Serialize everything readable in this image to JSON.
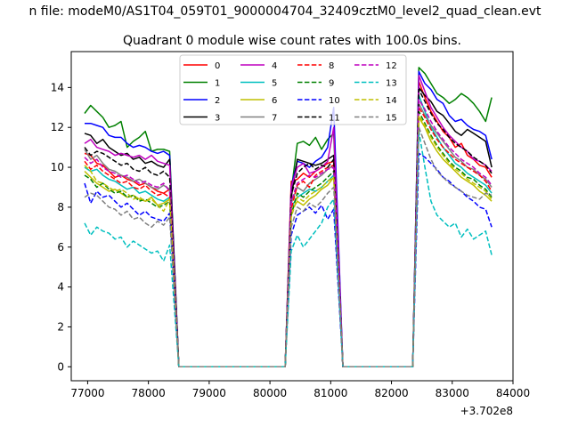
{
  "chart_data": {
    "type": "line",
    "suptitle": "n file: modeM0/AS1T04_059T01_9000004704_32409cztM0_level2_quad_clean.evt",
    "title": "Quadrant 0 module wise count rates with 100.0s bins.",
    "xlabel": "",
    "ylabel": "",
    "x_offset_label": "+3.702e8",
    "xlim": [
      76730,
      84000
    ],
    "ylim": [
      -0.7,
      15.8
    ],
    "xticks": [
      77000,
      78000,
      79000,
      80000,
      81000,
      82000,
      83000,
      84000
    ],
    "yticks": [
      0,
      2,
      4,
      6,
      8,
      10,
      12,
      14
    ],
    "legend_position": "upper-center",
    "segments": [
      {
        "start": 76950,
        "n": 15
      },
      {
        "start": 80350,
        "n": 8
      },
      {
        "start": 82450,
        "n": 13
      }
    ],
    "series": [
      {
        "name": "0",
        "color": "#ff0000",
        "style": "solid",
        "values": [
          10.7,
          10.6,
          10.2,
          10.1,
          9.8,
          9.5,
          9.6,
          9.4,
          9.3,
          9.1,
          9.2,
          9.0,
          8.8,
          8.7,
          8.9,
          9.3,
          9.4,
          9.7,
          9.5,
          9.8,
          10.0,
          10.2,
          10.3,
          14.3,
          13.5,
          12.8,
          12.3,
          11.8,
          11.5,
          11.0,
          11.2,
          10.6,
          10.4,
          10.1,
          10.0,
          9.5
        ]
      },
      {
        "name": "1",
        "color": "#008000",
        "style": "solid",
        "values": [
          12.7,
          13.1,
          12.8,
          12.5,
          12.0,
          12.1,
          12.3,
          11.0,
          11.3,
          11.5,
          11.8,
          10.8,
          10.9,
          10.9,
          10.8,
          8.8,
          11.2,
          11.3,
          11.1,
          11.5,
          10.9,
          11.4,
          11.7,
          15.0,
          14.7,
          14.2,
          13.7,
          13.5,
          13.2,
          13.4,
          13.7,
          13.5,
          13.2,
          12.8,
          12.3,
          13.5
        ]
      },
      {
        "name": "2",
        "color": "#0000ff",
        "style": "solid",
        "values": [
          12.2,
          12.2,
          12.1,
          12.0,
          11.6,
          11.5,
          11.5,
          11.2,
          11.0,
          11.1,
          11.0,
          10.8,
          10.7,
          10.8,
          10.6,
          9.0,
          10.3,
          10.2,
          10.0,
          10.3,
          10.5,
          11.0,
          13.0,
          14.8,
          14.2,
          13.9,
          13.4,
          13.2,
          12.6,
          12.3,
          12.4,
          12.1,
          11.9,
          11.8,
          11.6,
          10.4
        ]
      },
      {
        "name": "3",
        "color": "#000000",
        "style": "solid",
        "values": [
          11.7,
          11.6,
          11.2,
          11.4,
          11.0,
          10.8,
          10.6,
          10.7,
          10.4,
          10.5,
          10.2,
          10.3,
          10.1,
          10.0,
          10.4,
          8.5,
          10.4,
          10.3,
          10.2,
          10.1,
          10.2,
          10.4,
          10.6,
          14.0,
          13.6,
          13.3,
          12.8,
          12.6,
          12.2,
          11.8,
          11.6,
          11.9,
          11.7,
          11.5,
          11.3,
          10.0
        ]
      },
      {
        "name": "4",
        "color": "#bf00bf",
        "style": "solid",
        "values": [
          11.2,
          11.4,
          11.0,
          10.9,
          10.8,
          10.6,
          10.7,
          10.6,
          10.5,
          10.6,
          10.4,
          10.6,
          10.3,
          10.2,
          10.1,
          9.0,
          10.0,
          10.2,
          9.7,
          9.8,
          10.0,
          10.3,
          12.0,
          14.6,
          13.8,
          13.0,
          12.5,
          12.0,
          11.6,
          11.3,
          11.0,
          10.8,
          10.4,
          10.3,
          10.1,
          9.8
        ]
      },
      {
        "name": "5",
        "color": "#00bfbf",
        "style": "solid",
        "values": [
          10.0,
          9.8,
          9.9,
          9.6,
          9.4,
          9.3,
          9.1,
          8.9,
          9.0,
          8.7,
          8.8,
          8.6,
          8.4,
          8.3,
          8.5,
          8.0,
          8.5,
          8.7,
          8.9,
          8.8,
          9.0,
          9.3,
          9.6,
          13.6,
          12.8,
          12.0,
          11.5,
          11.0,
          10.6,
          10.2,
          10.0,
          9.7,
          9.5,
          9.3,
          9.1,
          8.7
        ]
      },
      {
        "name": "6",
        "color": "#bfbf00",
        "style": "solid",
        "values": [
          9.8,
          9.5,
          9.2,
          9.0,
          8.8,
          8.9,
          8.7,
          8.5,
          8.6,
          8.4,
          8.3,
          8.5,
          8.1,
          8.2,
          8.4,
          7.8,
          8.3,
          8.1,
          8.4,
          8.6,
          8.9,
          9.1,
          9.5,
          12.5,
          12.0,
          11.3,
          10.8,
          10.4,
          10.1,
          9.8,
          9.5,
          9.3,
          9.1,
          8.8,
          8.6,
          8.3
        ]
      },
      {
        "name": "7",
        "color": "#808080",
        "style": "solid",
        "values": [
          10.9,
          10.4,
          10.6,
          10.2,
          9.9,
          9.8,
          9.6,
          9.5,
          9.3,
          9.4,
          9.2,
          9.0,
          8.9,
          9.1,
          8.9,
          8.2,
          9.0,
          8.8,
          9.2,
          9.4,
          9.6,
          9.9,
          10.1,
          13.2,
          12.6,
          12.1,
          11.7,
          11.3,
          10.9,
          10.5,
          10.3,
          10.0,
          9.9,
          9.6,
          9.4,
          9.0
        ]
      },
      {
        "name": "8",
        "color": "#ff0000",
        "style": "dashed",
        "values": [
          10.3,
          9.9,
          10.1,
          9.8,
          9.6,
          9.4,
          9.2,
          9.3,
          9.0,
          8.9,
          9.1,
          8.8,
          8.6,
          8.7,
          8.5,
          7.9,
          9.1,
          9.3,
          9.0,
          9.6,
          9.8,
          10.0,
          10.1,
          13.0,
          12.5,
          11.9,
          11.4,
          11.0,
          10.7,
          10.4,
          10.2,
          10.0,
          9.8,
          9.6,
          9.3,
          8.8
        ]
      },
      {
        "name": "9",
        "color": "#008000",
        "style": "dashed",
        "values": [
          9.6,
          9.4,
          9.0,
          9.2,
          8.9,
          8.7,
          8.8,
          8.5,
          8.6,
          8.3,
          8.4,
          8.2,
          8.0,
          8.1,
          8.3,
          7.6,
          8.7,
          8.5,
          8.8,
          9.0,
          9.2,
          9.5,
          9.8,
          12.8,
          12.2,
          11.6,
          11.1,
          10.7,
          10.3,
          10.0,
          9.8,
          9.5,
          9.4,
          9.1,
          8.9,
          8.5
        ]
      },
      {
        "name": "10",
        "color": "#0000ff",
        "style": "dashed",
        "values": [
          9.2,
          8.2,
          8.8,
          8.5,
          8.6,
          8.3,
          8.0,
          8.2,
          7.9,
          7.6,
          7.8,
          7.5,
          7.4,
          7.3,
          7.7,
          6.6,
          7.6,
          7.8,
          8.0,
          7.7,
          8.1,
          7.4,
          7.9,
          10.7,
          10.5,
          10.2,
          9.9,
          9.5,
          9.3,
          9.0,
          8.8,
          8.5,
          8.3,
          8.0,
          7.9,
          7.0
        ]
      },
      {
        "name": "11",
        "color": "#000000",
        "style": "dashed",
        "values": [
          11.0,
          10.6,
          10.8,
          10.7,
          10.5,
          10.3,
          10.1,
          10.2,
          9.9,
          9.8,
          10.0,
          9.7,
          9.6,
          9.8,
          9.5,
          8.6,
          9.7,
          10.0,
          10.2,
          9.9,
          10.1,
          10.0,
          10.4,
          13.9,
          13.3,
          12.7,
          12.2,
          11.9,
          11.5,
          11.2,
          11.0,
          10.8,
          10.5,
          10.3,
          10.1,
          9.7
        ]
      },
      {
        "name": "12",
        "color": "#bf00bf",
        "style": "dashed",
        "values": [
          10.5,
          10.2,
          10.4,
          10.0,
          9.8,
          9.7,
          9.5,
          9.6,
          9.4,
          9.2,
          9.3,
          9.1,
          9.0,
          9.2,
          8.8,
          8.3,
          9.2,
          9.4,
          9.6,
          9.5,
          9.7,
          9.9,
          10.0,
          13.4,
          12.9,
          12.3,
          11.8,
          11.4,
          11.0,
          10.7,
          10.4,
          10.2,
          10.0,
          9.7,
          9.5,
          9.1
        ]
      },
      {
        "name": "13",
        "color": "#00bfbf",
        "style": "dashed",
        "values": [
          7.2,
          6.6,
          7.0,
          6.8,
          6.7,
          6.4,
          6.5,
          6.0,
          6.3,
          6.1,
          5.9,
          5.7,
          5.8,
          5.3,
          6.1,
          5.8,
          6.6,
          6.0,
          6.4,
          6.8,
          7.2,
          8.0,
          8.4,
          11.8,
          10.0,
          8.3,
          7.6,
          7.3,
          7.0,
          7.2,
          6.5,
          6.9,
          6.4,
          6.6,
          6.8,
          5.6
        ]
      },
      {
        "name": "14",
        "color": "#bfbf00",
        "style": "dashed",
        "values": [
          10.1,
          9.8,
          9.3,
          9.2,
          9.0,
          8.8,
          8.9,
          8.7,
          8.4,
          8.5,
          8.3,
          8.4,
          8.1,
          7.8,
          8.4,
          7.5,
          8.5,
          8.3,
          8.6,
          8.8,
          9.0,
          9.3,
          9.5,
          12.6,
          12.1,
          11.5,
          11.0,
          10.6,
          10.2,
          9.9,
          9.7,
          9.4,
          9.2,
          9.0,
          8.8,
          8.4
        ]
      },
      {
        "name": "15",
        "color": "#808080",
        "style": "dashed",
        "values": [
          8.5,
          8.7,
          8.6,
          8.3,
          8.0,
          7.9,
          7.6,
          7.8,
          7.4,
          7.5,
          7.2,
          7.0,
          7.3,
          7.1,
          7.5,
          7.0,
          8.0,
          7.8,
          8.2,
          8.0,
          8.3,
          8.7,
          9.0,
          12.0,
          11.2,
          10.4,
          9.8,
          9.5,
          9.2,
          9.0,
          8.8,
          8.6,
          8.5,
          8.4,
          8.7,
          8.6
        ]
      }
    ]
  }
}
